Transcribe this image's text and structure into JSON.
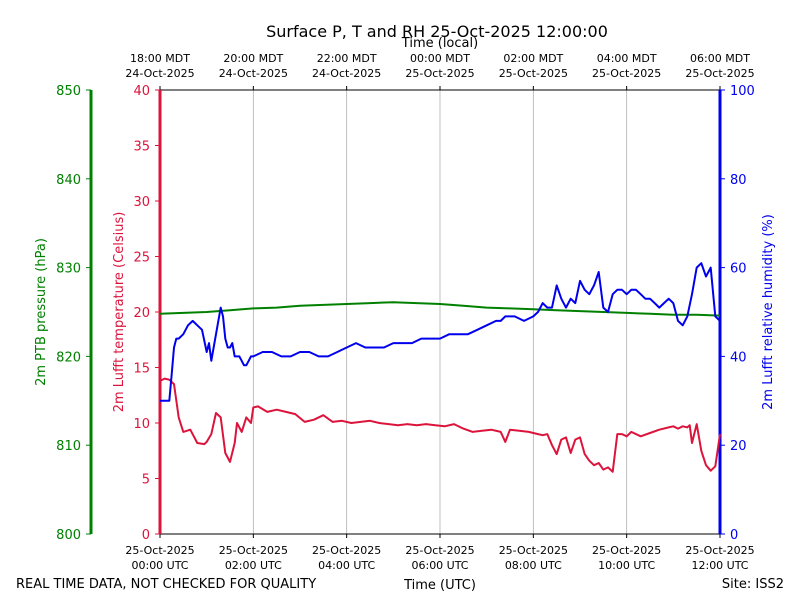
{
  "chart_data": {
    "type": "line",
    "title": "Surface P, T and RH 25-Oct-2025 12:00:00",
    "top_xlabel": "Time (local)",
    "bottom_xlabel": "Time (UTC)",
    "footer_left": "REAL TIME DATA, NOT CHECKED FOR QUALITY",
    "footer_right": "Site: ISS2",
    "x_range_hours": [
      0,
      12
    ],
    "grid": "vertical",
    "x_ticks": [
      {
        "hour": 0,
        "utc": [
          "25-Oct-2025",
          "00:00 UTC"
        ],
        "local": [
          "18:00 MDT",
          "24-Oct-2025"
        ]
      },
      {
        "hour": 2,
        "utc": [
          "25-Oct-2025",
          "02:00 UTC"
        ],
        "local": [
          "20:00 MDT",
          "24-Oct-2025"
        ]
      },
      {
        "hour": 4,
        "utc": [
          "25-Oct-2025",
          "04:00 UTC"
        ],
        "local": [
          "22:00 MDT",
          "24-Oct-2025"
        ]
      },
      {
        "hour": 6,
        "utc": [
          "25-Oct-2025",
          "06:00 UTC"
        ],
        "local": [
          "00:00 MDT",
          "25-Oct-2025"
        ]
      },
      {
        "hour": 8,
        "utc": [
          "25-Oct-2025",
          "08:00 UTC"
        ],
        "local": [
          "02:00 MDT",
          "25-Oct-2025"
        ]
      },
      {
        "hour": 10,
        "utc": [
          "25-Oct-2025",
          "10:00 UTC"
        ],
        "local": [
          "04:00 MDT",
          "25-Oct-2025"
        ]
      },
      {
        "hour": 12,
        "utc": [
          "25-Oct-2025",
          "12:00 UTC"
        ],
        "local": [
          "06:00 MDT",
          "25-Oct-2025"
        ]
      }
    ],
    "axes": {
      "pressure": {
        "label": "2m PTB pressure (hPa)",
        "color": "#008000",
        "ylim": [
          800,
          850
        ],
        "ticks": [
          800,
          810,
          820,
          830,
          840,
          850
        ]
      },
      "temperature": {
        "label": "2m Lufft temperature (Celsius)",
        "color": "#dc143c",
        "ylim": [
          0,
          40
        ],
        "ticks": [
          0,
          5,
          10,
          15,
          20,
          25,
          30,
          35,
          40
        ]
      },
      "humidity": {
        "label": "2m Lufft relative humidity (%)",
        "color": "#0000ee",
        "ylim": [
          0,
          100
        ],
        "ticks": [
          0,
          20,
          40,
          60,
          80,
          100
        ]
      }
    },
    "series": [
      {
        "name": "2m PTB pressure (hPa)",
        "axis": "pressure",
        "color": "#008000",
        "x": [
          0,
          0.5,
          1,
          1.5,
          2,
          2.5,
          3,
          3.5,
          4,
          4.5,
          5,
          5.5,
          6,
          6.5,
          7,
          7.5,
          8,
          8.5,
          9,
          9.5,
          10,
          10.5,
          11,
          11.5,
          12
        ],
        "y": [
          824.8,
          824.9,
          825.0,
          825.2,
          825.4,
          825.5,
          825.7,
          825.8,
          825.9,
          826.0,
          826.1,
          826.0,
          825.9,
          825.7,
          825.5,
          825.4,
          825.3,
          825.2,
          825.1,
          825.0,
          824.9,
          824.8,
          824.7,
          824.7,
          824.6
        ]
      },
      {
        "name": "2m Lufft temperature (Celsius)",
        "axis": "temperature",
        "color": "#dc143c",
        "x": [
          0,
          0.1,
          0.2,
          0.3,
          0.4,
          0.5,
          0.65,
          0.8,
          0.95,
          1.0,
          1.1,
          1.2,
          1.3,
          1.4,
          1.5,
          1.6,
          1.65,
          1.75,
          1.85,
          1.95,
          2.0,
          2.1,
          2.3,
          2.5,
          2.7,
          2.9,
          3.1,
          3.3,
          3.5,
          3.7,
          3.9,
          4.1,
          4.3,
          4.5,
          4.7,
          4.9,
          5.1,
          5.3,
          5.5,
          5.7,
          5.9,
          6.1,
          6.3,
          6.5,
          6.7,
          6.9,
          7.1,
          7.3,
          7.4,
          7.5,
          7.7,
          7.9,
          8.1,
          8.2,
          8.3,
          8.4,
          8.5,
          8.6,
          8.7,
          8.8,
          8.9,
          9.0,
          9.1,
          9.2,
          9.3,
          9.4,
          9.5,
          9.6,
          9.7,
          9.8,
          9.9,
          10.0,
          10.1,
          10.3,
          10.5,
          10.7,
          10.9,
          11.0,
          11.1,
          11.2,
          11.3,
          11.35,
          11.4,
          11.5,
          11.6,
          11.7,
          11.8,
          11.9,
          12.0
        ],
        "y": [
          13.8,
          14.0,
          13.9,
          13.5,
          10.5,
          9.2,
          9.4,
          8.2,
          8.1,
          8.3,
          9.0,
          10.9,
          10.5,
          7.3,
          6.5,
          8.2,
          10.0,
          9.2,
          10.5,
          10.0,
          11.4,
          11.5,
          11.0,
          11.2,
          11.0,
          10.8,
          10.1,
          10.3,
          10.7,
          10.1,
          10.2,
          10.0,
          10.1,
          10.2,
          10.0,
          9.9,
          9.8,
          9.9,
          9.8,
          9.9,
          9.8,
          9.7,
          9.9,
          9.5,
          9.2,
          9.3,
          9.4,
          9.2,
          8.3,
          9.4,
          9.3,
          9.2,
          9.0,
          8.9,
          9.0,
          8.0,
          7.2,
          8.5,
          8.7,
          7.3,
          8.5,
          8.7,
          7.2,
          6.6,
          6.2,
          6.4,
          5.8,
          6.0,
          5.6,
          9.0,
          9.0,
          8.8,
          9.2,
          8.8,
          9.1,
          9.4,
          9.6,
          9.7,
          9.5,
          9.7,
          9.6,
          9.8,
          8.2,
          9.9,
          7.5,
          6.2,
          5.7,
          6.1,
          9.0
        ]
      },
      {
        "name": "2m Lufft relative humidity (%)",
        "axis": "humidity",
        "color": "#0000ee",
        "x": [
          0,
          0.1,
          0.2,
          0.25,
          0.3,
          0.35,
          0.4,
          0.5,
          0.6,
          0.7,
          0.8,
          0.9,
          1.0,
          1.05,
          1.1,
          1.2,
          1.3,
          1.35,
          1.4,
          1.45,
          1.5,
          1.55,
          1.6,
          1.7,
          1.75,
          1.8,
          1.85,
          1.9,
          1.95,
          2.0,
          2.2,
          2.4,
          2.6,
          2.8,
          3.0,
          3.2,
          3.4,
          3.6,
          3.8,
          4.0,
          4.2,
          4.4,
          4.6,
          4.8,
          5.0,
          5.2,
          5.4,
          5.6,
          5.8,
          6.0,
          6.2,
          6.4,
          6.6,
          6.8,
          7.0,
          7.2,
          7.3,
          7.4,
          7.6,
          7.8,
          8.0,
          8.1,
          8.2,
          8.3,
          8.4,
          8.5,
          8.6,
          8.7,
          8.8,
          8.9,
          9.0,
          9.1,
          9.2,
          9.3,
          9.4,
          9.5,
          9.6,
          9.7,
          9.8,
          9.9,
          10.0,
          10.1,
          10.2,
          10.3,
          10.4,
          10.5,
          10.6,
          10.7,
          10.8,
          10.9,
          11.0,
          11.1,
          11.2,
          11.3,
          11.4,
          11.5,
          11.6,
          11.7,
          11.8,
          11.9,
          12.0
        ],
        "y": [
          30,
          30,
          30,
          36,
          42,
          44,
          44,
          45,
          47,
          48,
          47,
          46,
          41,
          43,
          39,
          45,
          51,
          49,
          44,
          42,
          42,
          43,
          40,
          40,
          39,
          38,
          38,
          39,
          40,
          40,
          41,
          41,
          40,
          40,
          41,
          41,
          40,
          40,
          41,
          42,
          43,
          42,
          42,
          42,
          43,
          43,
          43,
          44,
          44,
          44,
          45,
          45,
          45,
          46,
          47,
          48,
          48,
          49,
          49,
          48,
          49,
          50,
          52,
          51,
          51,
          56,
          53,
          51,
          53,
          52,
          57,
          55,
          54,
          56,
          59,
          51,
          50,
          54,
          55,
          55,
          54,
          55,
          55,
          54,
          53,
          53,
          52,
          51,
          52,
          53,
          52,
          48,
          47,
          49,
          54,
          60,
          61,
          58,
          60,
          49,
          48
        ]
      }
    ]
  }
}
